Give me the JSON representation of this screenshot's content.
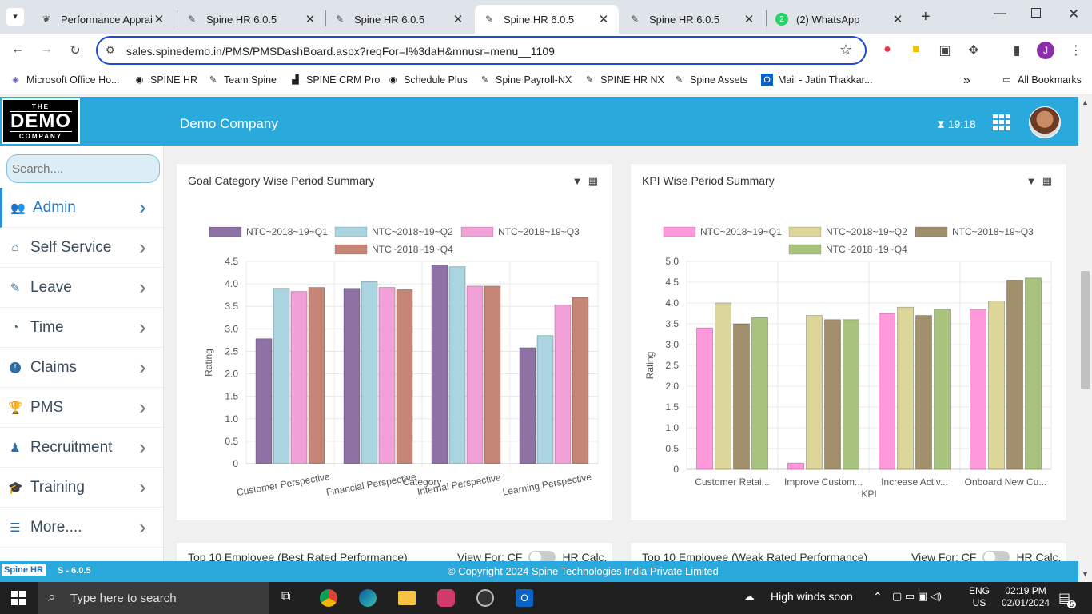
{
  "browser": {
    "tabs": [
      {
        "title": "Performance Apprais",
        "icon": "leaf",
        "active": false
      },
      {
        "title": "Spine HR 6.0.5",
        "icon": "spine",
        "active": false
      },
      {
        "title": "Spine HR 6.0.5",
        "icon": "spine",
        "active": false
      },
      {
        "title": "Spine HR 6.0.5",
        "icon": "spine",
        "active": true
      },
      {
        "title": "Spine HR 6.0.5",
        "icon": "spine",
        "active": false
      },
      {
        "title": "(2) WhatsApp",
        "icon": "whatsapp",
        "active": false
      }
    ],
    "whatsapp_badge": "2",
    "url": "sales.spinedemo.in/PMS/PMSDashBoard.aspx?reqFor=I%3daH&mnusr=menu__1109",
    "profile_initial": "J",
    "bookmarks": [
      "Microsoft Office Ho...",
      "SPINE HR",
      "Team Spine",
      "SPINE CRM Pro",
      "Schedule Plus",
      "Spine Payroll-NX",
      "SPINE HR NX",
      "Spine Assets",
      "Mail - Jatin Thakkar..."
    ],
    "all_bookmarks": "All Bookmarks"
  },
  "app": {
    "logo": {
      "the": "THE",
      "demo": "DEMO",
      "company": "COMPANY"
    },
    "company_name": "Demo Company",
    "timer": "19:18",
    "search_placeholder": "Search....",
    "menu": [
      {
        "label": "Admin",
        "icon": "users-cog-icon",
        "active": true
      },
      {
        "label": "Self Service",
        "icon": "home-icon",
        "active": false
      },
      {
        "label": "Leave",
        "icon": "edit-icon",
        "active": false
      },
      {
        "label": "Time",
        "icon": "user-clock-icon",
        "active": false
      },
      {
        "label": "Claims",
        "icon": "exclamation-icon",
        "active": false
      },
      {
        "label": "PMS",
        "icon": "trophy-icon",
        "active": false
      },
      {
        "label": "Recruitment",
        "icon": "user-tie-icon",
        "active": false
      },
      {
        "label": "Training",
        "icon": "graduation-cap-icon",
        "active": false
      },
      {
        "label": "More....",
        "icon": "list-icon",
        "active": false
      }
    ],
    "bottom_cards": [
      {
        "title": "Top 10 Employee (Best Rated Performance)",
        "view_for": "View For: CF",
        "toggle_label": "HR Calc."
      },
      {
        "title": "Top 10 Employee (Weak Rated Performance)",
        "view_for": "View For: CF",
        "toggle_label": "HR Calc."
      }
    ],
    "footer": {
      "logo": "Spine HR",
      "version": "S - 6.0.5",
      "copyright": "© Copyright 2024 Spine Technologies India Private Limited"
    }
  },
  "chart_data": [
    {
      "type": "bar",
      "title": "Goal Category Wise Period Summary",
      "xlabel": "Category",
      "ylabel": "Rating",
      "ylim": [
        0,
        4.5
      ],
      "yticks": [
        "4.5",
        "4.0",
        "3.5",
        "3.0",
        "2.5",
        "2.0",
        "1.5",
        "1.0",
        "0.5",
        "0"
      ],
      "categories": [
        "Customer Perspective",
        "Financial Perspective",
        "Internal Perspective",
        "Learning Perspective"
      ],
      "series": [
        {
          "name": "NTC~2018~19~Q1",
          "color": "#8e72a6",
          "values": [
            2.78,
            3.9,
            4.42,
            2.58
          ]
        },
        {
          "name": "NTC~2018~19~Q2",
          "color": "#aad4e0",
          "values": [
            3.9,
            4.05,
            4.38,
            2.85
          ]
        },
        {
          "name": "NTC~2018~19~Q3",
          "color": "#f2a1d8",
          "values": [
            3.83,
            3.92,
            3.95,
            3.53
          ]
        },
        {
          "name": "NTC~2018~19~Q4",
          "color": "#c58677",
          "values": [
            3.92,
            3.87,
            3.95,
            3.7
          ]
        }
      ],
      "legend": "top",
      "grid": true
    },
    {
      "type": "bar",
      "title": "KPI Wise Period Summary",
      "xlabel": "KPI",
      "ylabel": "Rating",
      "ylim": [
        0,
        5.0
      ],
      "yticks": [
        "5.0",
        "4.5",
        "4.0",
        "3.5",
        "3.0",
        "2.5",
        "2.0",
        "1.5",
        "1.0",
        "0.5",
        "0"
      ],
      "categories": [
        "Customer Retai...",
        "Improve Custom...",
        "Increase Activ...",
        "Onboard New Cu..."
      ],
      "series": [
        {
          "name": "NTC~2018~19~Q1",
          "color": "#ff99dc",
          "values": [
            3.4,
            0.15,
            3.75,
            3.85
          ]
        },
        {
          "name": "NTC~2018~19~Q2",
          "color": "#ddd699",
          "values": [
            4.0,
            3.7,
            3.9,
            4.05
          ]
        },
        {
          "name": "NTC~2018~19~Q3",
          "color": "#a28f6c",
          "values": [
            3.5,
            3.6,
            3.7,
            4.55
          ]
        },
        {
          "name": "NTC~2018~19~Q4",
          "color": "#a8c47c",
          "values": [
            3.65,
            3.6,
            3.85,
            4.6
          ]
        }
      ],
      "legend": "top",
      "grid": true
    }
  ],
  "taskbar": {
    "search_placeholder": "Type here to search",
    "weather": "High winds soon",
    "lang": "ENG",
    "region": "US",
    "time": "02:19 PM",
    "date": "02/01/2024",
    "notification_count": "5"
  }
}
